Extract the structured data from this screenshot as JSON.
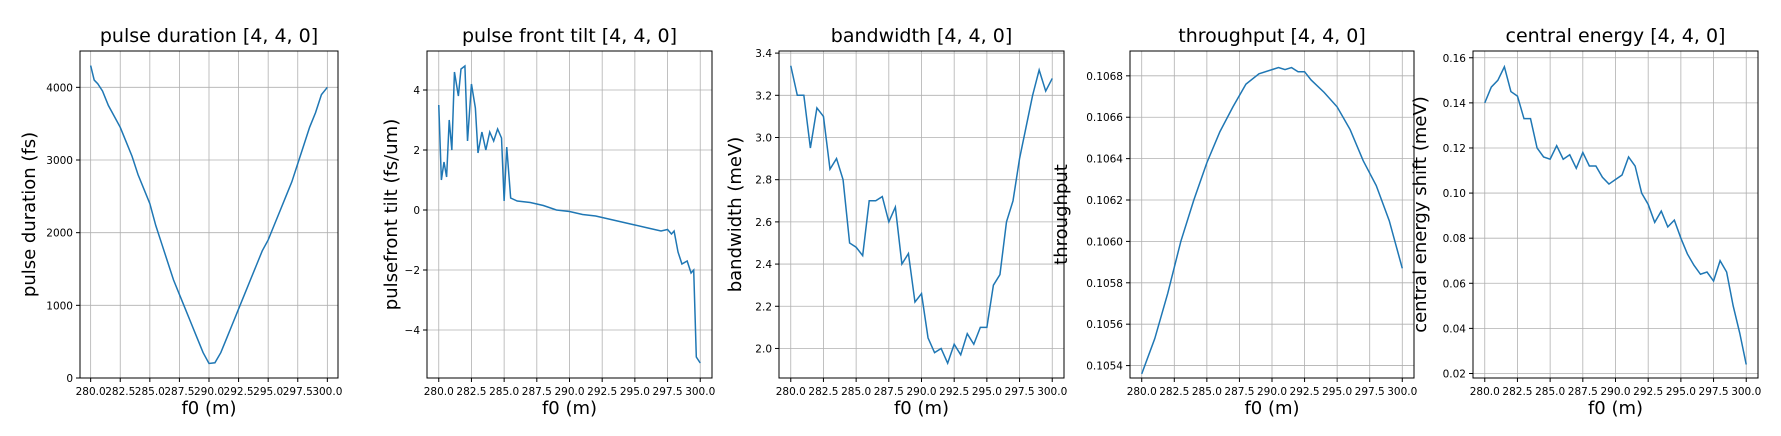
{
  "chart_data": [
    {
      "type": "line",
      "title": "pulse duration [4, 4, 0]",
      "xlabel": "f0 (m)",
      "ylabel": "pulse duration (fs)",
      "xlim": [
        279.1,
        300.9
      ],
      "ylim": [
        0,
        4500
      ],
      "xticks": [
        280.0,
        282.5,
        285.0,
        287.5,
        290.0,
        292.5,
        295.0,
        297.5,
        300.0
      ],
      "xtick_labels": [
        "280.0",
        "282.5",
        "285.0",
        "287.5",
        "290.0",
        "292.5",
        "295.0",
        "297.5",
        "300.0"
      ],
      "yticks": [
        0,
        1000,
        2000,
        3000,
        4000
      ],
      "ytick_labels": [
        "0",
        "1000",
        "2000",
        "3000",
        "4000"
      ],
      "grid": true,
      "series": [
        {
          "color": "#1f77b4",
          "x": [
            280.0,
            280.3,
            280.6,
            281.0,
            281.5,
            282.0,
            282.5,
            283.0,
            283.5,
            284.0,
            284.5,
            285.0,
            285.5,
            286.0,
            286.5,
            287.0,
            287.5,
            288.0,
            288.5,
            289.0,
            289.5,
            290.0,
            290.5,
            291.0,
            291.5,
            292.0,
            292.5,
            293.0,
            293.5,
            294.0,
            294.5,
            295.0,
            295.5,
            296.0,
            296.5,
            297.0,
            297.5,
            298.0,
            298.5,
            299.0,
            299.5,
            300.0
          ],
          "y": [
            4300,
            4100,
            4050,
            3950,
            3750,
            3600,
            3450,
            3250,
            3050,
            2800,
            2600,
            2400,
            2100,
            1850,
            1600,
            1350,
            1150,
            950,
            750,
            550,
            350,
            200,
            210,
            350,
            550,
            750,
            950,
            1150,
            1350,
            1550,
            1750,
            1900,
            2100,
            2300,
            2500,
            2700,
            2950,
            3200,
            3450,
            3650,
            3900,
            4000
          ]
        }
      ]
    },
    {
      "type": "line",
      "title": "pulse front tilt [4, 4, 0]",
      "xlabel": "f0 (m)",
      "ylabel": "pulsefront tilt (fs/um)",
      "xlim": [
        279.1,
        300.9
      ],
      "ylim": [
        -5.6,
        5.3
      ],
      "xticks": [
        280.0,
        282.5,
        285.0,
        287.5,
        290.0,
        292.5,
        295.0,
        297.5,
        300.0
      ],
      "xtick_labels": [
        "280.0",
        "282.5",
        "285.0",
        "287.5",
        "290.0",
        "292.5",
        "295.0",
        "297.5",
        "300.0"
      ],
      "yticks": [
        -4,
        -2,
        0,
        2,
        4
      ],
      "ytick_labels": [
        "−4",
        "−2",
        "0",
        "2",
        "4"
      ],
      "grid": true,
      "series": [
        {
          "color": "#1f77b4",
          "x": [
            280.0,
            280.2,
            280.4,
            280.6,
            280.8,
            281.0,
            281.2,
            281.5,
            281.7,
            282.0,
            282.2,
            282.5,
            282.8,
            283.0,
            283.3,
            283.6,
            283.9,
            284.2,
            284.5,
            284.8,
            285.0,
            285.2,
            285.5,
            286.0,
            287.0,
            288.0,
            289.0,
            290.0,
            291.0,
            292.0,
            293.0,
            294.0,
            295.0,
            296.0,
            297.0,
            297.5,
            297.8,
            298.0,
            298.3,
            298.6,
            299.0,
            299.3,
            299.5,
            299.7,
            300.0
          ],
          "y": [
            3.5,
            1.0,
            1.6,
            1.1,
            3.0,
            2.0,
            4.6,
            3.8,
            4.7,
            4.8,
            2.3,
            4.2,
            3.4,
            1.9,
            2.6,
            2.0,
            2.6,
            2.3,
            2.7,
            2.4,
            0.3,
            2.1,
            0.4,
            0.3,
            0.25,
            0.15,
            0.0,
            -0.05,
            -0.15,
            -0.2,
            -0.3,
            -0.4,
            -0.5,
            -0.6,
            -0.7,
            -0.65,
            -0.8,
            -0.7,
            -1.4,
            -1.8,
            -1.7,
            -2.1,
            -2.0,
            -4.9,
            -5.1
          ]
        }
      ]
    },
    {
      "type": "line",
      "title": "bandwidth [4, 4, 0]",
      "xlabel": "f0 (m)",
      "ylabel": "bandwidth (meV)",
      "xlim": [
        279.1,
        300.9
      ],
      "ylim": [
        1.86,
        3.41
      ],
      "xticks": [
        280.0,
        282.5,
        285.0,
        287.5,
        290.0,
        292.5,
        295.0,
        297.5,
        300.0
      ],
      "xtick_labels": [
        "280.0",
        "282.5",
        "285.0",
        "287.5",
        "290.0",
        "292.5",
        "295.0",
        "297.5",
        "300.0"
      ],
      "yticks": [
        2.0,
        2.2,
        2.4,
        2.6,
        2.8,
        3.0,
        3.2,
        3.4
      ],
      "ytick_labels": [
        "2.0",
        "2.2",
        "2.4",
        "2.6",
        "2.8",
        "3.0",
        "3.2",
        "3.4"
      ],
      "grid": true,
      "series": [
        {
          "color": "#1f77b4",
          "x": [
            280.0,
            280.5,
            281.0,
            281.5,
            282.0,
            282.5,
            283.0,
            283.5,
            284.0,
            284.5,
            285.0,
            285.5,
            286.0,
            286.5,
            287.0,
            287.5,
            288.0,
            288.5,
            289.0,
            289.5,
            290.0,
            290.5,
            291.0,
            291.5,
            292.0,
            292.5,
            293.0,
            293.5,
            294.0,
            294.5,
            295.0,
            295.5,
            296.0,
            296.5,
            297.0,
            297.5,
            298.0,
            298.5,
            299.0,
            299.5,
            300.0
          ],
          "y": [
            3.34,
            3.2,
            3.2,
            2.95,
            3.14,
            3.1,
            2.85,
            2.9,
            2.8,
            2.5,
            2.48,
            2.44,
            2.7,
            2.7,
            2.72,
            2.6,
            2.67,
            2.4,
            2.45,
            2.22,
            2.26,
            2.05,
            1.98,
            2.0,
            1.93,
            2.02,
            1.97,
            2.07,
            2.02,
            2.1,
            2.1,
            2.3,
            2.35,
            2.6,
            2.7,
            2.9,
            3.05,
            3.2,
            3.32,
            3.22,
            3.28
          ]
        }
      ]
    },
    {
      "type": "line",
      "title": "throughput [4, 4, 0]",
      "xlabel": "f0 (m)",
      "ylabel": "throughput",
      "xlim": [
        279.1,
        300.9
      ],
      "ylim": [
        0.10534,
        0.10692
      ],
      "xticks": [
        280.0,
        282.5,
        285.0,
        287.5,
        290.0,
        292.5,
        295.0,
        297.5,
        300.0
      ],
      "xtick_labels": [
        "280.0",
        "282.5",
        "285.0",
        "287.5",
        "290.0",
        "292.5",
        "295.0",
        "297.5",
        "300.0"
      ],
      "yticks": [
        0.1054,
        0.1056,
        0.1058,
        0.106,
        0.1062,
        0.1064,
        0.1066,
        0.1068
      ],
      "ytick_labels": [
        "0.1054",
        "0.1056",
        "0.1058",
        "0.1060",
        "0.1062",
        "0.1064",
        "0.1066",
        "0.1068"
      ],
      "grid": true,
      "series": [
        {
          "color": "#1f77b4",
          "x": [
            280.0,
            281.0,
            282.0,
            283.0,
            284.0,
            285.0,
            286.0,
            287.0,
            288.0,
            289.0,
            290.0,
            290.5,
            291.0,
            291.5,
            292.0,
            292.5,
            293.0,
            294.0,
            295.0,
            296.0,
            297.0,
            298.0,
            299.0,
            300.0
          ],
          "y": [
            0.10536,
            0.10553,
            0.10575,
            0.106,
            0.1062,
            0.10638,
            0.10653,
            0.10665,
            0.10676,
            0.10681,
            0.10683,
            0.10684,
            0.10683,
            0.10684,
            0.10682,
            0.10682,
            0.10678,
            0.10672,
            0.10665,
            0.10654,
            0.10639,
            0.10627,
            0.1061,
            0.10587
          ]
        }
      ]
    },
    {
      "type": "line",
      "title": "central energy [4, 4, 0]",
      "xlabel": "f0 (m)",
      "ylabel": "central energy shift (meV)",
      "xlim": [
        279.1,
        300.9
      ],
      "ylim": [
        0.018,
        0.163
      ],
      "xticks": [
        280.0,
        282.5,
        285.0,
        287.5,
        290.0,
        292.5,
        295.0,
        297.5,
        300.0
      ],
      "xtick_labels": [
        "280.0",
        "282.5",
        "285.0",
        "287.5",
        "290.0",
        "292.5",
        "295.0",
        "297.5",
        "300.0"
      ],
      "yticks": [
        0.02,
        0.04,
        0.06,
        0.08,
        0.1,
        0.12,
        0.14,
        0.16
      ],
      "ytick_labels": [
        "0.02",
        "0.04",
        "0.06",
        "0.08",
        "0.10",
        "0.12",
        "0.14",
        "0.16"
      ],
      "grid": true,
      "series": [
        {
          "color": "#1f77b4",
          "x": [
            280.0,
            280.5,
            281.0,
            281.5,
            282.0,
            282.5,
            283.0,
            283.5,
            284.0,
            284.5,
            285.0,
            285.5,
            286.0,
            286.5,
            287.0,
            287.5,
            288.0,
            288.5,
            289.0,
            289.5,
            290.0,
            290.5,
            291.0,
            291.5,
            292.0,
            292.5,
            293.0,
            293.5,
            294.0,
            294.5,
            295.0,
            295.5,
            296.0,
            296.5,
            297.0,
            297.5,
            298.0,
            298.5,
            299.0,
            299.5,
            300.0
          ],
          "y": [
            0.14,
            0.147,
            0.15,
            0.156,
            0.145,
            0.143,
            0.133,
            0.133,
            0.12,
            0.116,
            0.115,
            0.121,
            0.115,
            0.117,
            0.111,
            0.118,
            0.112,
            0.112,
            0.107,
            0.104,
            0.106,
            0.108,
            0.116,
            0.112,
            0.1,
            0.095,
            0.087,
            0.092,
            0.085,
            0.088,
            0.08,
            0.073,
            0.068,
            0.064,
            0.065,
            0.061,
            0.07,
            0.065,
            0.05,
            0.038,
            0.024
          ]
        }
      ]
    }
  ]
}
